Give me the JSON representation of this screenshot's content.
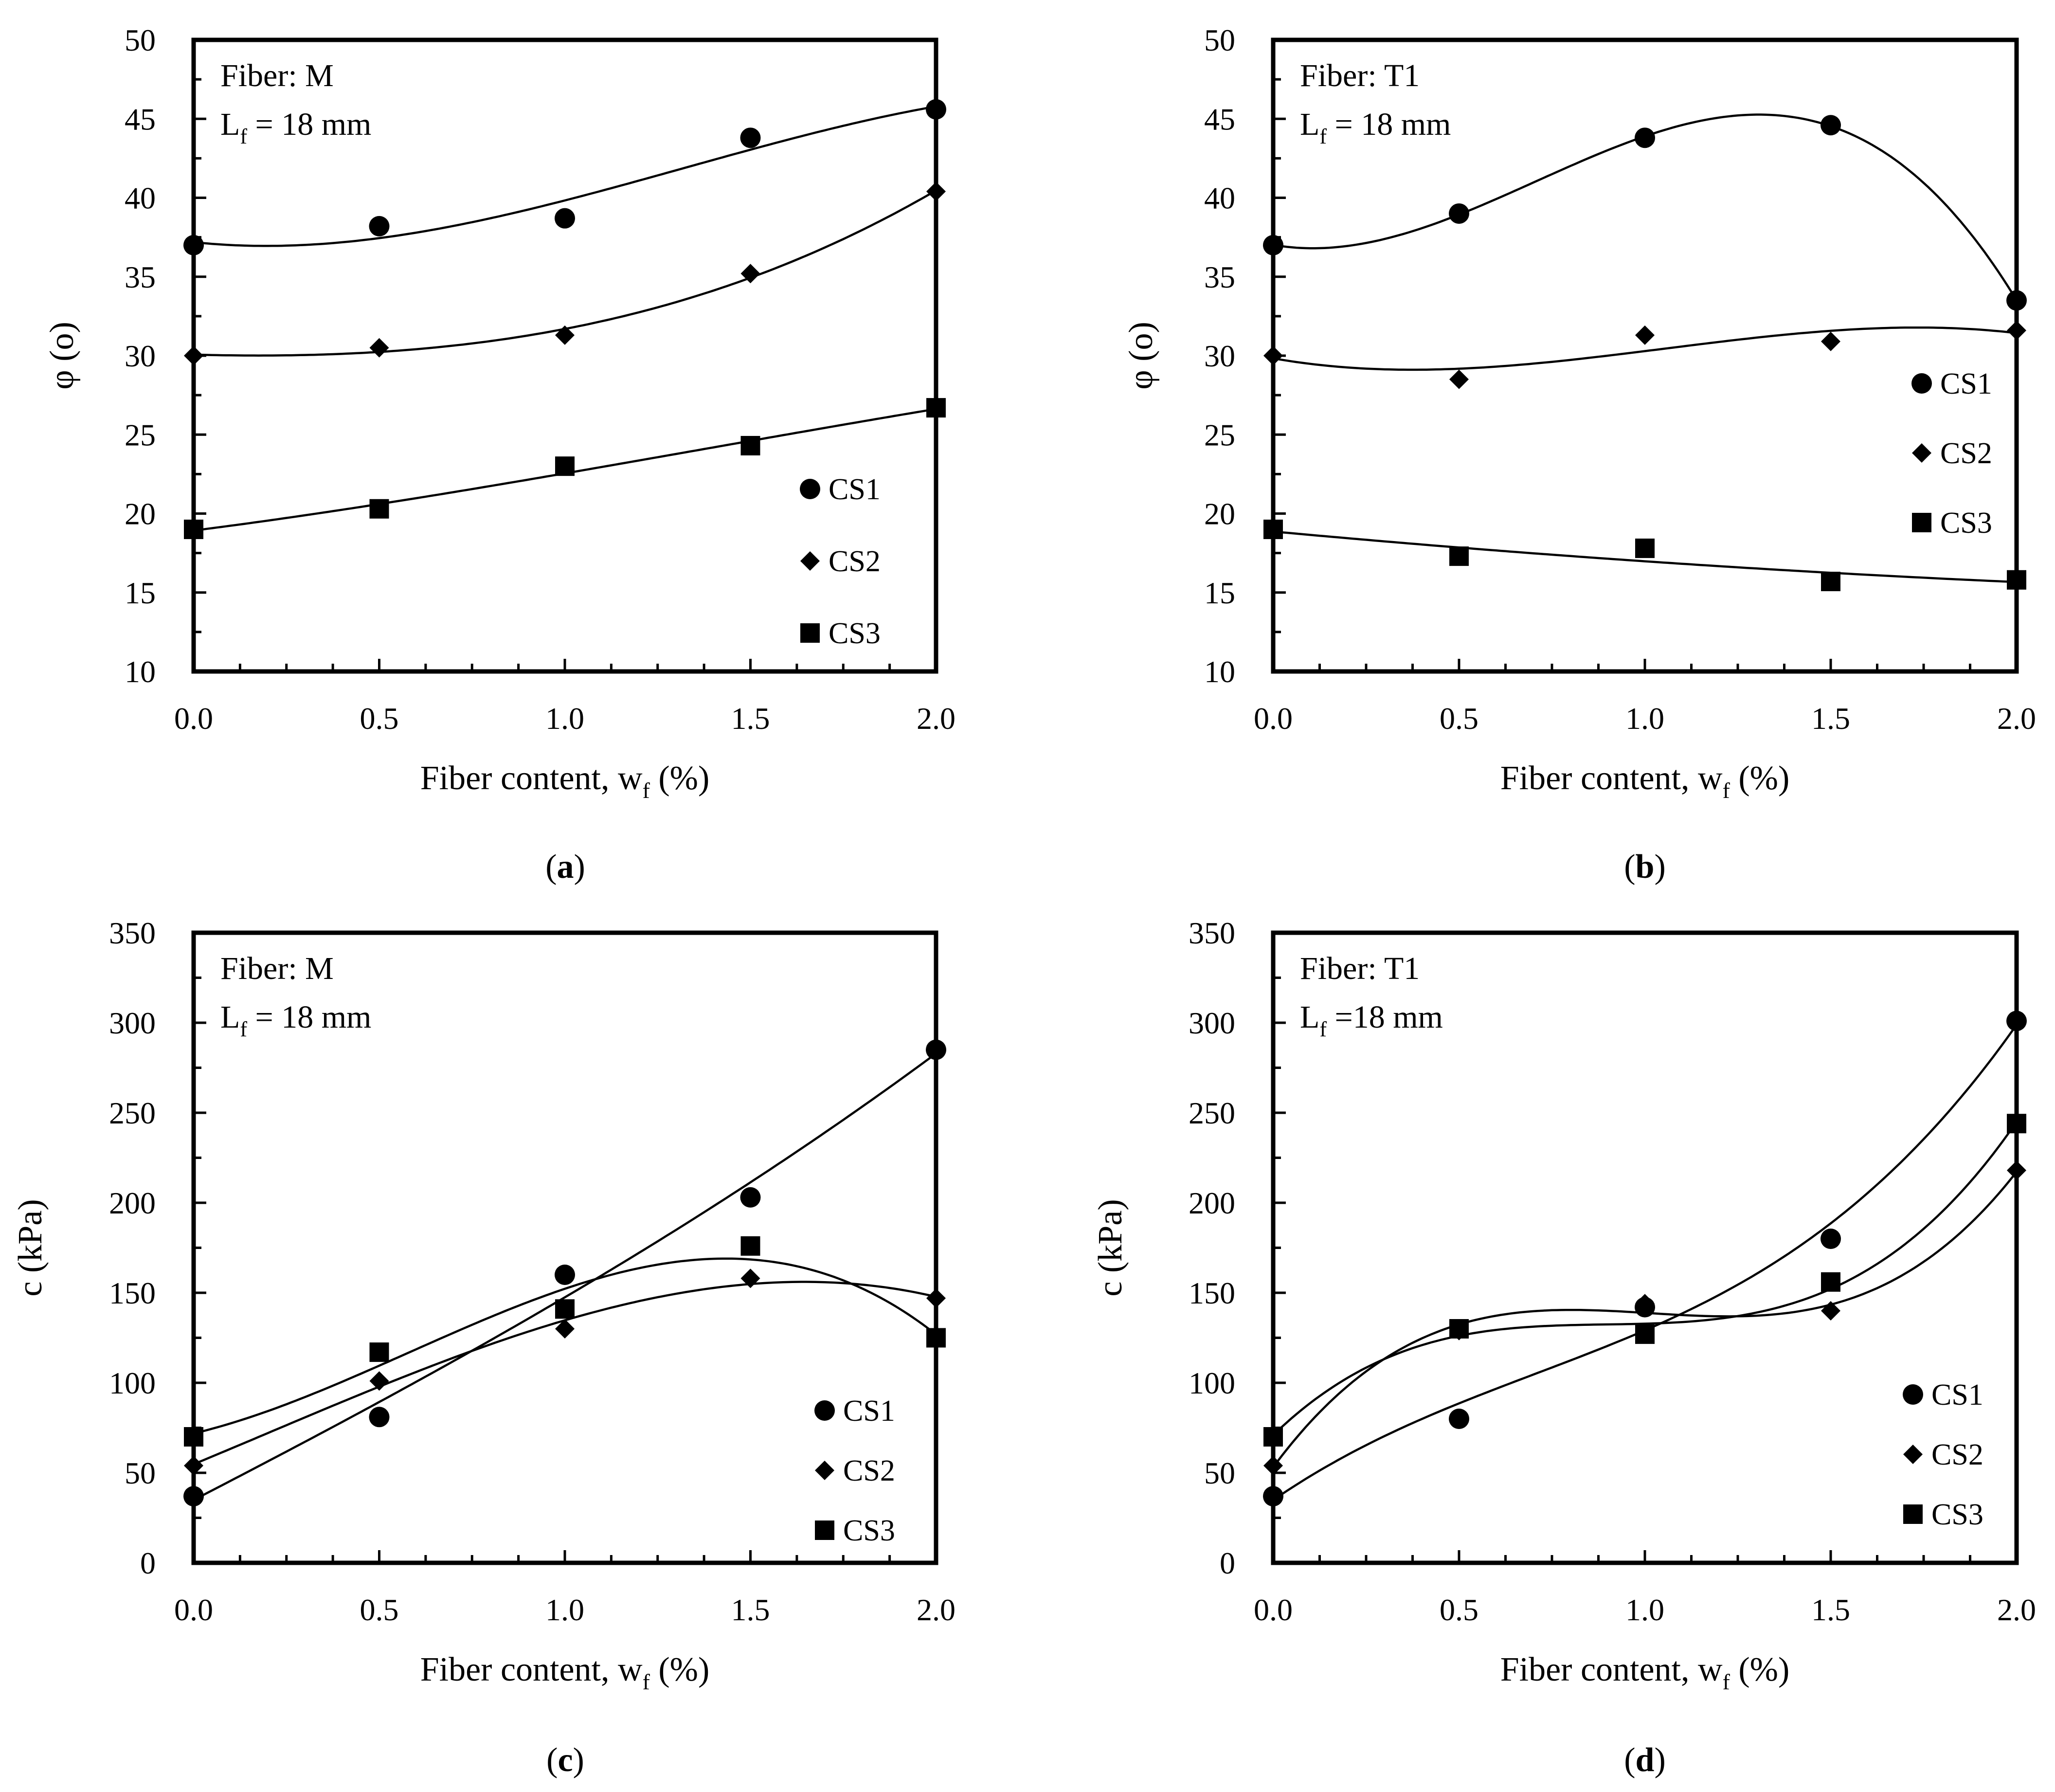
{
  "chart_data": [
    {
      "type": "scatter",
      "panel": "a",
      "caption": "(a)",
      "caption_letter": "a",
      "annotation": [
        "Fiber: M",
        "L",
        "f",
        " = 18 mm"
      ],
      "ylabel": "φ (o)",
      "xlabel": [
        "Fiber content, w",
        "f",
        " (%)"
      ],
      "xlim": [
        0,
        2
      ],
      "ylim": [
        10,
        50
      ],
      "xticks": [
        "0.0",
        "0.5",
        "1.0",
        "1.5",
        "2.0"
      ],
      "yticks": [
        "10",
        "15",
        "20",
        "25",
        "30",
        "35",
        "40",
        "45",
        "50"
      ],
      "legend_position": "bottom-right",
      "x": [
        0,
        0.5,
        1.0,
        1.5,
        2.0
      ],
      "series": [
        {
          "name": "CS1",
          "marker": "circle",
          "values": [
            37.0,
            38.2,
            38.7,
            43.8,
            45.6
          ]
        },
        {
          "name": "CS2",
          "marker": "diamond",
          "values": [
            30.0,
            30.5,
            31.3,
            35.2,
            40.4
          ]
        },
        {
          "name": "CS3",
          "marker": "square",
          "values": [
            19.0,
            20.3,
            23.0,
            24.3,
            26.7
          ]
        }
      ]
    },
    {
      "type": "scatter",
      "panel": "b",
      "caption": "(b)",
      "caption_letter": "b",
      "annotation": [
        "Fiber: T1",
        "L",
        "f",
        " = 18 mm"
      ],
      "ylabel": "φ (o)",
      "xlabel": [
        "Fiber content, w",
        "f",
        " (%)"
      ],
      "xlim": [
        0,
        2
      ],
      "ylim": [
        10,
        50
      ],
      "xticks": [
        "0.0",
        "0.5",
        "1.0",
        "1.5",
        "2.0"
      ],
      "yticks": [
        "10",
        "15",
        "20",
        "25",
        "30",
        "35",
        "40",
        "45",
        "50"
      ],
      "legend_position": "right",
      "x": [
        0,
        0.5,
        1.0,
        1.5,
        2.0
      ],
      "series": [
        {
          "name": "CS1",
          "marker": "circle",
          "values": [
            37.0,
            39.0,
            43.8,
            44.6,
            33.5
          ]
        },
        {
          "name": "CS2",
          "marker": "diamond",
          "values": [
            30.0,
            28.5,
            31.3,
            30.9,
            31.6
          ]
        },
        {
          "name": "CS3",
          "marker": "square",
          "values": [
            19.0,
            17.3,
            17.8,
            15.7,
            15.8
          ]
        }
      ]
    },
    {
      "type": "scatter",
      "panel": "c",
      "caption": "(c)",
      "caption_letter": "c",
      "annotation": [
        "Fiber: M",
        "L",
        "f",
        " = 18 mm"
      ],
      "ylabel": "c (kPa)",
      "xlabel": [
        "Fiber content, w",
        "f",
        " (%)"
      ],
      "xlim": [
        0,
        2
      ],
      "ylim": [
        0,
        350
      ],
      "xticks": [
        "0.0",
        "0.5",
        "1.0",
        "1.5",
        "2.0"
      ],
      "yticks": [
        "0",
        "50",
        "100",
        "150",
        "200",
        "250",
        "300",
        "350"
      ],
      "legend_position": "bottom-right",
      "x": [
        0,
        0.5,
        1.0,
        1.5,
        2.0
      ],
      "series": [
        {
          "name": "CS1",
          "marker": "circle",
          "values": [
            37,
            81,
            160,
            203,
            285
          ]
        },
        {
          "name": "CS2",
          "marker": "diamond",
          "values": [
            54,
            101,
            130,
            158,
            147
          ]
        },
        {
          "name": "CS3",
          "marker": "square",
          "values": [
            70,
            117,
            141,
            176,
            125
          ]
        }
      ]
    },
    {
      "type": "scatter",
      "panel": "d",
      "caption": "(d)",
      "caption_letter": "d",
      "annotation": [
        "Fiber: T1",
        "L",
        "f",
        " =18 mm"
      ],
      "ylabel": "c (kPa)",
      "xlabel": [
        "Fiber content, w",
        "f",
        " (%)"
      ],
      "xlim": [
        0,
        2
      ],
      "ylim": [
        0,
        350
      ],
      "xticks": [
        "0.0",
        "0.5",
        "1.0",
        "1.5",
        "2.0"
      ],
      "yticks": [
        "0",
        "50",
        "100",
        "150",
        "200",
        "250",
        "300",
        "350"
      ],
      "legend_position": "bottom-right",
      "x": [
        0,
        0.5,
        1.0,
        1.5,
        2.0
      ],
      "series": [
        {
          "name": "CS1",
          "marker": "circle",
          "values": [
            37,
            80,
            142,
            180,
            301
          ]
        },
        {
          "name": "CS2",
          "marker": "diamond",
          "values": [
            54,
            129,
            144,
            140,
            218
          ]
        },
        {
          "name": "CS3",
          "marker": "square",
          "values": [
            70,
            130,
            127,
            156,
            244
          ]
        }
      ]
    }
  ]
}
